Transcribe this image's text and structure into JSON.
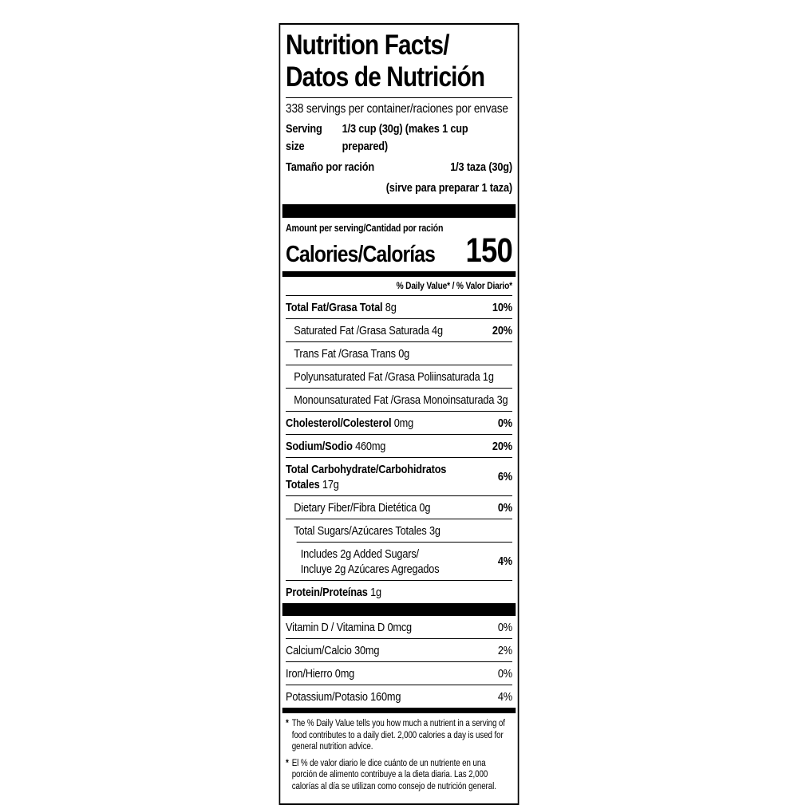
{
  "colors": {
    "ink": "#000000",
    "paper": "#ffffff"
  },
  "label": {
    "title_line1": "Nutrition Facts/",
    "title_line2": "Datos de Nutrición",
    "servings_per_container": "338 servings per container/raciones por envase",
    "serving_size_label_en": "Serving size",
    "serving_size_value_en": "1/3 cup (30g) (makes 1 cup prepared)",
    "serving_size_label_es": "Tamaño por ración",
    "serving_size_value_es": "1/3 taza (30g)",
    "serving_size_note_es": "(sirve para preparar 1 taza)",
    "amount_per_serving": "Amount per serving/Cantidad por ración",
    "calories_label": "Calories/Calorías",
    "calories_value": "150",
    "daily_value_header": "% Daily Value* / % Valor Diario*",
    "nutrients": [
      {
        "name": "Total Fat/Grasa Total",
        "amount": "8g",
        "pct": "10%",
        "bold": true,
        "indent": 0
      },
      {
        "name": "Saturated Fat /Grasa Saturada",
        "amount": "4g",
        "pct": "20%",
        "bold": false,
        "indent": 1
      },
      {
        "name": "Trans Fat /Grasa Trans",
        "amount": "0g",
        "pct": "",
        "bold": false,
        "indent": 1
      },
      {
        "name": "Polyunsaturated Fat /Grasa Poliinsaturada",
        "amount": "1g",
        "pct": "",
        "bold": false,
        "indent": 1
      },
      {
        "name": "Monounsaturated Fat /Grasa Monoinsaturada",
        "amount": "3g",
        "pct": "",
        "bold": false,
        "indent": 1
      },
      {
        "name": "Cholesterol/Colesterol",
        "amount": "0mg",
        "pct": "0%",
        "bold": true,
        "indent": 0
      },
      {
        "name": "Sodium/Sodio",
        "amount": "460mg",
        "pct": "20%",
        "bold": true,
        "indent": 0
      },
      {
        "name": "Total Carbohydrate/Carbohidratos Totales",
        "amount": "17g",
        "pct": "6%",
        "bold": true,
        "indent": 0
      },
      {
        "name": "Dietary Fiber/Fibra Dietética",
        "amount": "0g",
        "pct": "0%",
        "bold": false,
        "indent": 1
      },
      {
        "name": "Total Sugars/Azúcares Totales",
        "amount": "3g",
        "pct": "",
        "bold": false,
        "indent": 1
      },
      {
        "name": "Includes 2g Added Sugars/",
        "name2": "Incluye 2g Azúcares Agregados",
        "amount": "",
        "pct": "4%",
        "bold": false,
        "indent": 2,
        "divider_indent": true
      },
      {
        "name": "Protein/Proteínas",
        "amount": "1g",
        "pct": "",
        "bold": true,
        "indent": 0
      }
    ],
    "vitamins": [
      {
        "name": "Vitamin D / Vitamina D",
        "amount": "0mcg",
        "pct": "0%"
      },
      {
        "name": "Calcium/Calcio",
        "amount": "30mg",
        "pct": "2%"
      },
      {
        "name": "Iron/Hierro",
        "amount": "0mg",
        "pct": "0%"
      },
      {
        "name": "Potassium/Potasio",
        "amount": "160mg",
        "pct": "4%"
      }
    ],
    "footnotes": [
      {
        "marker": "*",
        "text": "The % Daily Value tells you how much a nutrient in a serving of food contributes to a daily diet. 2,000 calories a day is used for general nutrition advice."
      },
      {
        "marker": "*",
        "text": "El % de valor diario le dice cuánto de un nutriente en una porción de alimento contribuye a la dieta diaria. Las 2,000 calorías al día se utilizan como consejo de nutrición general."
      }
    ]
  }
}
